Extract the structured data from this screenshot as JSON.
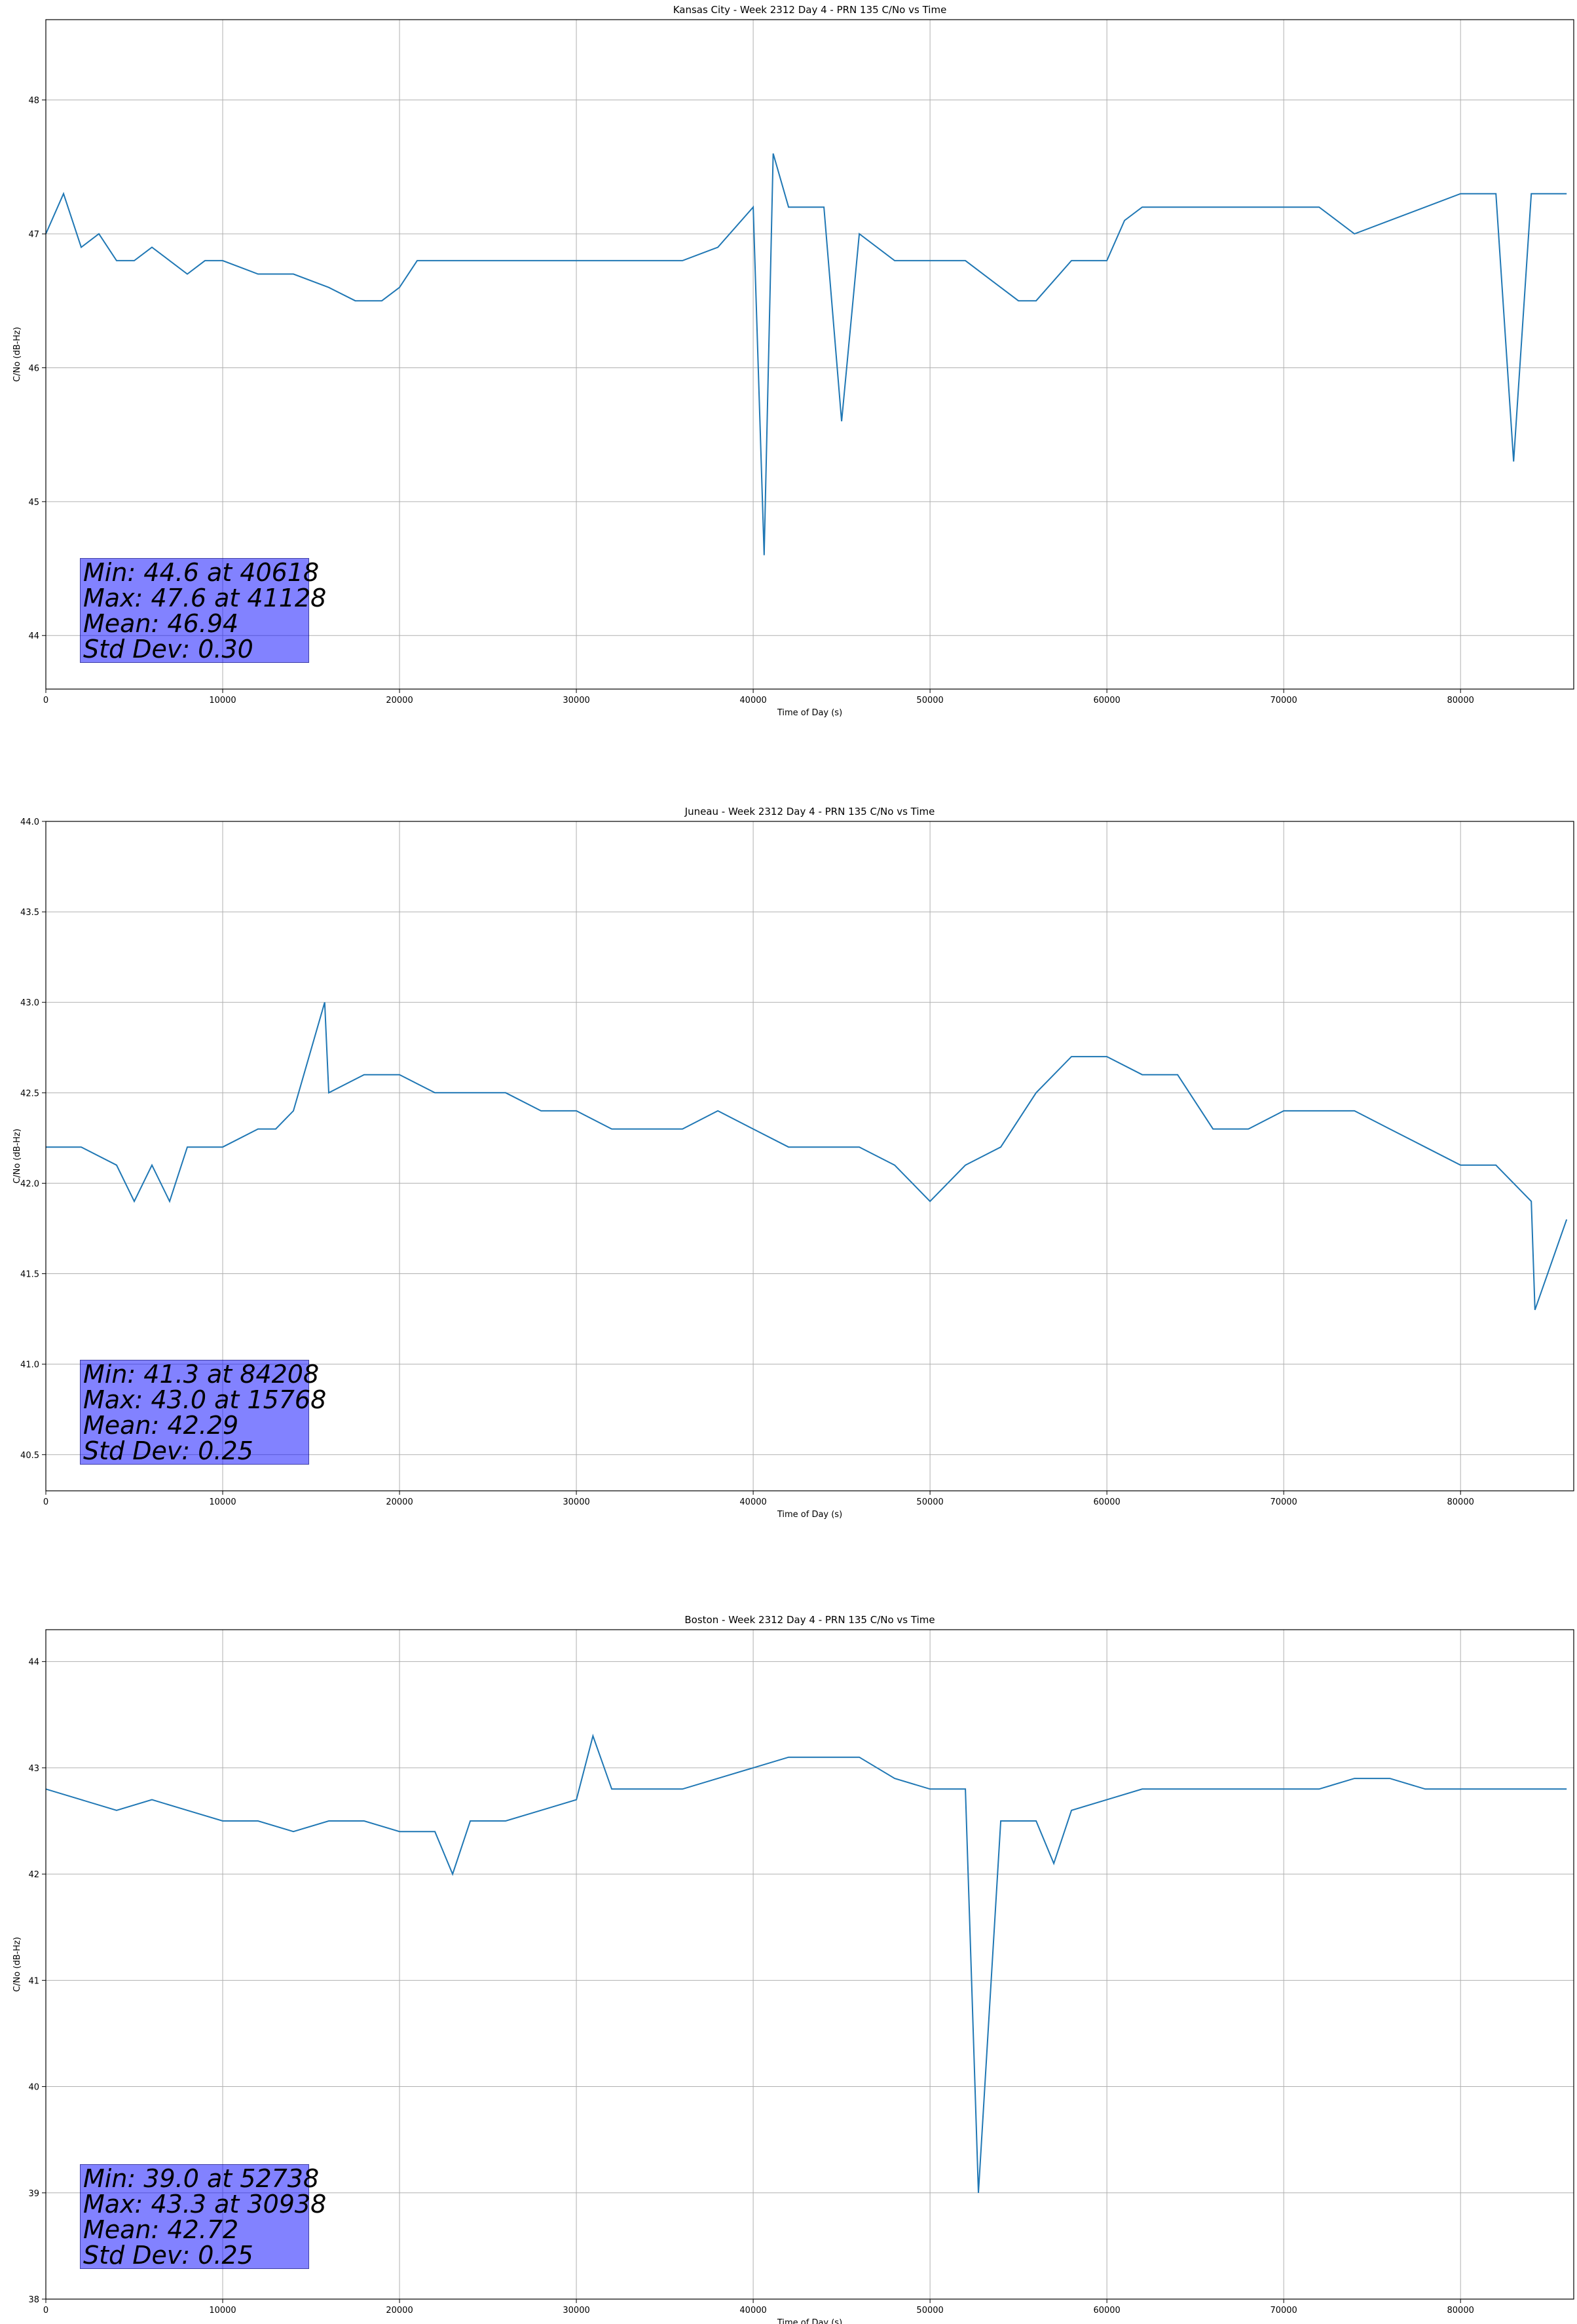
{
  "chart_data": [
    {
      "type": "line",
      "title": "Kansas City - Week 2312 Day 4 - PRN 135 C/No vs Time",
      "xlabel": "Time of Day (s)",
      "ylabel": "C/No (dB-Hz)",
      "xlim": [
        0,
        86400
      ],
      "ylim": [
        43.6,
        48.6
      ],
      "xticks": [
        0,
        10000,
        20000,
        30000,
        40000,
        50000,
        60000,
        70000,
        80000
      ],
      "yticks": [
        44,
        45,
        46,
        47,
        48
      ],
      "grid": true,
      "color": "#1f77b4",
      "series": [
        {
          "x": [
            0,
            1000,
            2000,
            3000,
            4000,
            5000,
            6000,
            7000,
            8000,
            9000,
            10000,
            12000,
            14000,
            16000,
            17500,
            18000,
            19000,
            20000,
            21000,
            22000,
            24000,
            26000,
            28000,
            30000,
            32000,
            34000,
            36000,
            38000,
            40000,
            40618,
            41128,
            42000,
            44000,
            45000,
            46000,
            48000,
            50000,
            52000,
            54000,
            55000,
            56000,
            58000,
            60000,
            61000,
            62000,
            64000,
            66000,
            68000,
            70000,
            72000,
            74000,
            76000,
            78000,
            80000,
            82000,
            83000,
            84000,
            86000
          ],
          "y": [
            47.0,
            47.3,
            46.9,
            47.0,
            46.8,
            46.8,
            46.9,
            46.8,
            46.7,
            46.8,
            46.8,
            46.7,
            46.7,
            46.6,
            46.5,
            46.5,
            46.5,
            46.6,
            46.8,
            46.8,
            46.8,
            46.8,
            46.8,
            46.8,
            46.8,
            46.8,
            46.8,
            46.9,
            47.2,
            44.6,
            47.6,
            47.2,
            47.2,
            45.6,
            47.0,
            46.8,
            46.8,
            46.8,
            46.6,
            46.5,
            46.5,
            46.8,
            46.8,
            47.1,
            47.2,
            47.2,
            47.2,
            47.2,
            47.2,
            47.2,
            47.0,
            47.1,
            47.2,
            47.3,
            47.3,
            45.3,
            47.3,
            47.3
          ]
        }
      ],
      "stats": [
        "Min: 44.6 at 40618",
        "Max: 47.6 at 41128",
        "Mean: 46.94",
        "Std Dev: 0.30"
      ]
    },
    {
      "type": "line",
      "title": "Juneau - Week 2312 Day 4 - PRN 135 C/No vs Time",
      "xlabel": "Time of Day (s)",
      "ylabel": "C/No (dB-Hz)",
      "xlim": [
        0,
        86400
      ],
      "ylim": [
        40.3,
        44.0
      ],
      "xticks": [
        0,
        10000,
        20000,
        30000,
        40000,
        50000,
        60000,
        70000,
        80000
      ],
      "yticks": [
        40.5,
        41.0,
        41.5,
        42.0,
        42.5,
        43.0,
        43.5,
        44.0
      ],
      "grid": true,
      "color": "#1f77b4",
      "series": [
        {
          "x": [
            0,
            2000,
            4000,
            5000,
            6000,
            7000,
            8000,
            10000,
            12000,
            13000,
            14000,
            15768,
            16000,
            18000,
            20000,
            22000,
            24000,
            26000,
            28000,
            30000,
            32000,
            34000,
            36000,
            38000,
            40000,
            42000,
            44000,
            46000,
            48000,
            50000,
            52000,
            54000,
            56000,
            58000,
            60000,
            62000,
            64000,
            66000,
            68000,
            70000,
            72000,
            74000,
            76000,
            78000,
            80000,
            82000,
            84000,
            84208,
            86000
          ],
          "y": [
            42.2,
            42.2,
            42.1,
            41.9,
            42.1,
            41.9,
            42.2,
            42.2,
            42.3,
            42.3,
            42.4,
            43.0,
            42.5,
            42.6,
            42.6,
            42.5,
            42.5,
            42.5,
            42.4,
            42.4,
            42.3,
            42.3,
            42.3,
            42.4,
            42.3,
            42.2,
            42.2,
            42.2,
            42.1,
            41.9,
            42.1,
            42.2,
            42.5,
            42.7,
            42.7,
            42.6,
            42.6,
            42.3,
            42.3,
            42.4,
            42.4,
            42.4,
            42.3,
            42.2,
            42.1,
            42.1,
            41.9,
            41.3,
            41.8
          ]
        }
      ],
      "stats": [
        "Min: 41.3 at 84208",
        "Max: 43.0 at 15768",
        "Mean: 42.29",
        "Std Dev: 0.25"
      ]
    },
    {
      "type": "line",
      "title": "Boston - Week 2312 Day 4 - PRN 135 C/No vs Time",
      "xlabel": "Time of Day (s)",
      "ylabel": "C/No (dB-Hz)",
      "xlim": [
        0,
        86400
      ],
      "ylim": [
        38.0,
        44.3
      ],
      "xticks": [
        0,
        10000,
        20000,
        30000,
        40000,
        50000,
        60000,
        70000,
        80000
      ],
      "yticks": [
        38,
        39,
        40,
        41,
        42,
        43,
        44
      ],
      "grid": true,
      "color": "#1f77b4",
      "series": [
        {
          "x": [
            0,
            2000,
            4000,
            6000,
            8000,
            10000,
            12000,
            14000,
            16000,
            18000,
            20000,
            22000,
            23000,
            24000,
            26000,
            28000,
            30000,
            30938,
            32000,
            34000,
            36000,
            38000,
            40000,
            42000,
            44000,
            46000,
            48000,
            50000,
            52000,
            52738,
            54000,
            56000,
            57000,
            58000,
            60000,
            62000,
            64000,
            66000,
            68000,
            70000,
            72000,
            74000,
            76000,
            78000,
            80000,
            82000,
            84000,
            86000
          ],
          "y": [
            42.8,
            42.7,
            42.6,
            42.7,
            42.6,
            42.5,
            42.5,
            42.4,
            42.5,
            42.5,
            42.4,
            42.4,
            42.0,
            42.5,
            42.5,
            42.6,
            42.7,
            43.3,
            42.8,
            42.8,
            42.8,
            42.9,
            43.0,
            43.1,
            43.1,
            43.1,
            42.9,
            42.8,
            42.8,
            39.0,
            42.5,
            42.5,
            42.1,
            42.6,
            42.7,
            42.8,
            42.8,
            42.8,
            42.8,
            42.8,
            42.8,
            42.9,
            42.9,
            42.8,
            42.8,
            42.8,
            42.8,
            42.8
          ]
        }
      ],
      "stats": [
        "Min: 39.0 at 52738",
        "Max: 43.3 at 30938",
        "Mean: 42.72",
        "Std Dev: 0.25"
      ]
    }
  ]
}
